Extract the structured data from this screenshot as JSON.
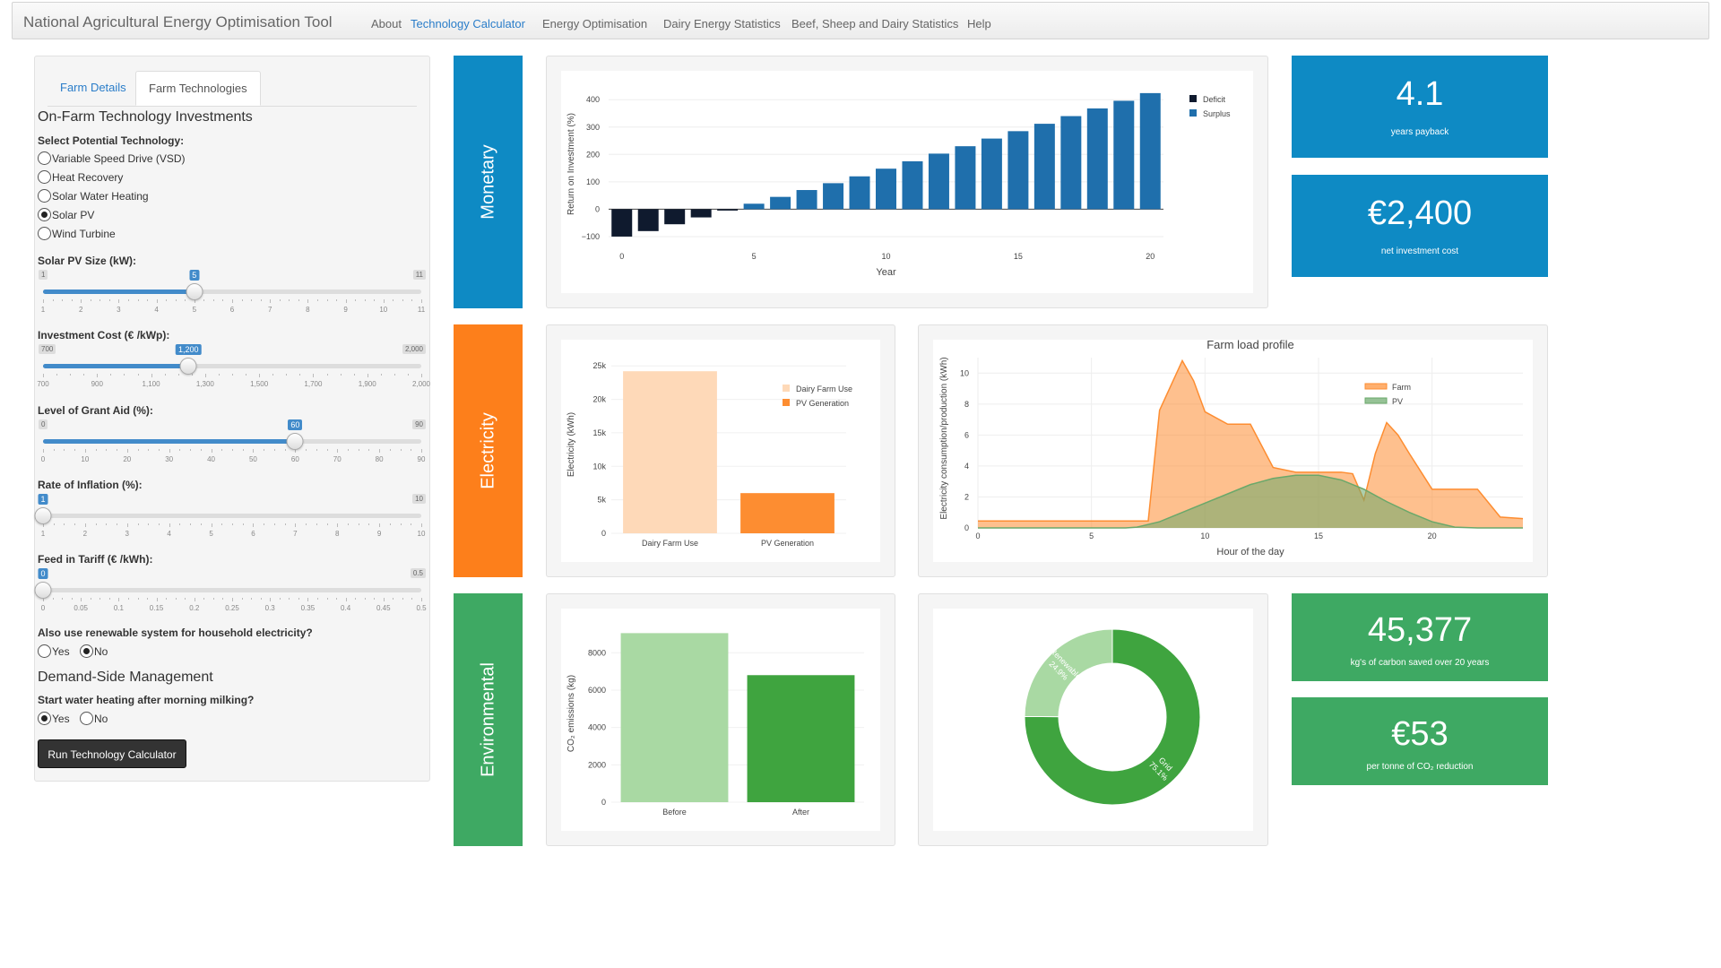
{
  "app": {
    "title": "National Agricultural Energy Optimisation Tool",
    "nav": [
      "About",
      "Technology Calculator",
      "Energy Optimisation",
      "Dairy Energy Statistics",
      "Beef, Sheep and Dairy Statistics",
      "Help"
    ],
    "active_nav": "Technology Calculator"
  },
  "sidebar": {
    "tabs": [
      "Farm Details",
      "Farm Technologies"
    ],
    "active_tab": "Farm Technologies",
    "section_title": "On-Farm Technology Investments",
    "technology_label": "Select Potential Technology:",
    "technologies": [
      {
        "label": "Variable Speed Drive (VSD)",
        "checked": false
      },
      {
        "label": "Heat Recovery",
        "checked": false
      },
      {
        "label": "Solar Water Heating",
        "checked": false
      },
      {
        "label": "Solar PV",
        "checked": true
      },
      {
        "label": "Wind Turbine",
        "checked": false
      }
    ],
    "sliders": {
      "pv_size": {
        "label": "Solar PV Size (kW):",
        "min_label": "1",
        "max_label": "11",
        "value_label": "5",
        "fraction": 0.4,
        "ticks": [
          "1",
          "2",
          "3",
          "4",
          "5",
          "6",
          "7",
          "8",
          "9",
          "10",
          "11"
        ]
      },
      "investment_cost": {
        "label": "Investment Cost (€ /kWp):",
        "min_label": "700",
        "max_label": "2,000",
        "value_label": "1,200",
        "fraction": 0.3846,
        "ticks": [
          "700",
          "900",
          "1,100",
          "1,300",
          "1,500",
          "1,700",
          "1,900",
          "2,000"
        ]
      },
      "grant_aid": {
        "label": "Level of Grant Aid (%):",
        "min_label": "0",
        "max_label": "90",
        "value_label": "60",
        "fraction": 0.6667,
        "ticks": [
          "0",
          "10",
          "20",
          "30",
          "40",
          "50",
          "60",
          "70",
          "80",
          "90"
        ]
      },
      "inflation": {
        "label": "Rate of Inflation (%):",
        "min_label": "1",
        "max_label": "10",
        "value_label": "1",
        "fraction": 0,
        "ticks": [
          "1",
          "2",
          "3",
          "4",
          "5",
          "6",
          "7",
          "8",
          "9",
          "10"
        ]
      },
      "feed_in_tariff": {
        "label": "Feed in Tariff (€ /kWh):",
        "min_label": "0",
        "max_label": "0.5",
        "value_label": "0",
        "fraction": 0,
        "ticks": [
          "0",
          "0.05",
          "0.1",
          "0.15",
          "0.2",
          "0.25",
          "0.3",
          "0.35",
          "0.4",
          "0.45",
          "0.5"
        ]
      }
    },
    "household": {
      "label": "Also use renewable system for household electricity?",
      "yes": "Yes",
      "no": "No",
      "selected": "No"
    },
    "dsm_title": "Demand-Side Management",
    "water_heating": {
      "label": "Start water heating after morning milking?",
      "yes": "Yes",
      "no": "No",
      "selected": "Yes"
    },
    "run_button": "Run Technology Calculator"
  },
  "banners": {
    "monetary": {
      "label": "Monetary",
      "color": "#0e8ac4"
    },
    "electricity": {
      "label": "Electricity",
      "color": "#fd7f1b"
    },
    "environmental": {
      "label": "Environmental",
      "color": "#3ea963"
    }
  },
  "value_boxes": {
    "payback": {
      "value": "4.1",
      "subtitle": "years payback",
      "color": "#0e8ac4"
    },
    "investment": {
      "value": "€2,400",
      "subtitle": "net investment cost",
      "color": "#0e8ac4"
    },
    "carbon": {
      "value": "45,377",
      "subtitle": "kg's of carbon saved over 20 years",
      "color": "#3ea963"
    },
    "per_tonne": {
      "value": "€53",
      "subtitle": "per tonne of CO₂ reduction",
      "color": "#3ea963"
    }
  },
  "chart_data": [
    {
      "id": "roi",
      "type": "bar",
      "title": "",
      "xlabel": "Year",
      "ylabel": "Return on Investment (%)",
      "x": [
        0,
        1,
        2,
        3,
        4,
        5,
        6,
        7,
        8,
        9,
        10,
        11,
        12,
        13,
        14,
        15,
        16,
        17,
        18,
        19,
        20
      ],
      "values": [
        -100,
        -80,
        -55,
        -30,
        -5,
        20,
        45,
        70,
        95,
        120,
        148,
        175,
        203,
        230,
        258,
        285,
        312,
        340,
        368,
        396,
        424
      ],
      "xlim": [
        -0.5,
        20.5
      ],
      "ylim": [
        -110,
        440
      ],
      "xticks": [
        0,
        5,
        10,
        15,
        20
      ],
      "yticks": [
        -100,
        0,
        100,
        200,
        300,
        400
      ],
      "ytick_labels": [
        "−100",
        "0",
        "100",
        "200",
        "300",
        "400"
      ],
      "legend": [
        "Deficit",
        "Surplus"
      ],
      "colors": {
        "Deficit": "#0f1a2e",
        "Surplus": "#1f6fac"
      }
    },
    {
      "id": "electricity",
      "type": "bar",
      "title": "",
      "ylabel": "Electricity (kWh)",
      "categories": [
        "Dairy Farm Use",
        "PV Generation"
      ],
      "values": [
        24200,
        6000
      ],
      "ylim": [
        0,
        26500
      ],
      "yticks": [
        0,
        5000,
        10000,
        15000,
        20000,
        25000
      ],
      "ytick_labels": [
        "0",
        "5k",
        "10k",
        "15k",
        "20k",
        "25k"
      ],
      "legend": [
        "Dairy Farm Use",
        "PV Generation"
      ],
      "colors": [
        "#fed9b8",
        "#fd8d31"
      ]
    },
    {
      "id": "load_profile",
      "type": "area",
      "title": "Farm load profile",
      "xlabel": "Hour of the day",
      "ylabel": "Electricity consumption/production (kWh)",
      "xlim": [
        0,
        24
      ],
      "ylim": [
        0,
        11
      ],
      "xticks": [
        0,
        5,
        10,
        15,
        20
      ],
      "yticks": [
        0,
        2,
        4,
        6,
        8,
        10
      ],
      "series": [
        {
          "name": "Farm",
          "color": "#fd8d31",
          "x": [
            0,
            1,
            2,
            3,
            4,
            5,
            6,
            7,
            7.5,
            8,
            9,
            9.5,
            10,
            11,
            12,
            13,
            14,
            15,
            16,
            16.5,
            17,
            17.5,
            18,
            18.5,
            19,
            20,
            21,
            22,
            23,
            24
          ],
          "y": [
            0.45,
            0.45,
            0.45,
            0.45,
            0.45,
            0.45,
            0.45,
            0.45,
            0.45,
            7.6,
            10.8,
            9.5,
            7.5,
            6.7,
            6.7,
            3.9,
            3.6,
            3.6,
            3.6,
            3.5,
            1.8,
            4.8,
            6.8,
            6.0,
            4.8,
            2.5,
            2.5,
            2.5,
            0.7,
            0.6
          ]
        },
        {
          "name": "PV",
          "color": "#6aa86a",
          "x": [
            0,
            6.5,
            7,
            8,
            9,
            10,
            11,
            12,
            13,
            14,
            15,
            16,
            17,
            18,
            19,
            20,
            21,
            22,
            24
          ],
          "y": [
            0,
            0,
            0.05,
            0.4,
            1.0,
            1.6,
            2.2,
            2.8,
            3.2,
            3.4,
            3.4,
            3.1,
            2.5,
            1.7,
            1.0,
            0.4,
            0.05,
            0,
            0
          ]
        }
      ],
      "legend": [
        "Farm",
        "PV"
      ]
    },
    {
      "id": "co2",
      "type": "bar",
      "title": "",
      "ylabel": "CO₂ emissions (kg)",
      "categories": [
        "Before",
        "After"
      ],
      "values": [
        9050,
        6800
      ],
      "ylim": [
        0,
        9500
      ],
      "yticks": [
        0,
        2000,
        4000,
        6000,
        8000
      ],
      "colors": [
        "#a9d9a3",
        "#3fa43f"
      ]
    },
    {
      "id": "energy_mix",
      "type": "pie",
      "title": "",
      "labels": [
        "Grid",
        "Renewable"
      ],
      "values": [
        75.1,
        24.9
      ],
      "value_labels": [
        "75.1%",
        "24.9%"
      ],
      "colors": [
        "#3fa43f",
        "#a9d9a3"
      ]
    }
  ]
}
